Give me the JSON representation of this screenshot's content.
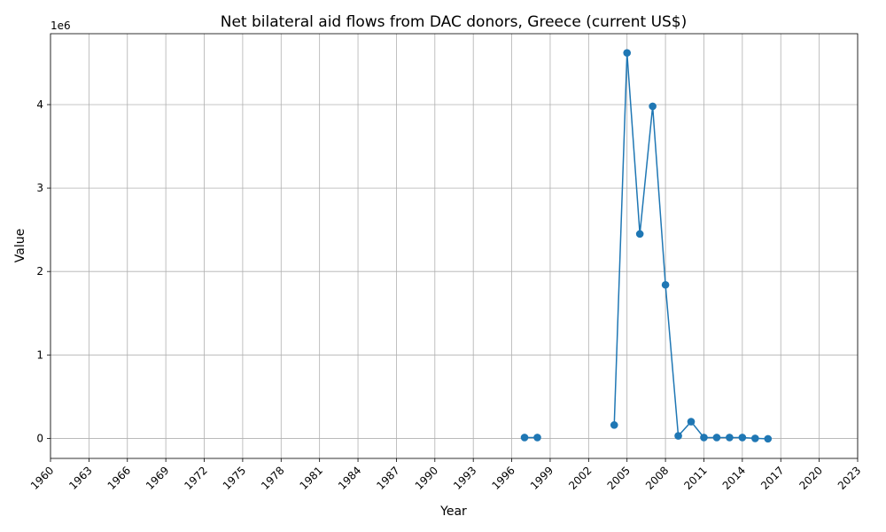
{
  "chart_data": {
    "type": "line",
    "title": "Net bilateral aid flows from DAC donors, Greece (current US$)",
    "xlabel": "Year",
    "ylabel": "Value",
    "y_scale_label": "1e6",
    "xlim": [
      1960,
      2023
    ],
    "ylim": [
      -240000,
      4850000
    ],
    "x_ticks": [
      "1960",
      "1963",
      "1966",
      "1969",
      "1972",
      "1975",
      "1978",
      "1981",
      "1984",
      "1987",
      "1990",
      "1993",
      "1996",
      "1999",
      "2002",
      "2005",
      "2008",
      "2011",
      "2014",
      "2017",
      "2020",
      "2023"
    ],
    "y_ticks": [
      "0",
      "1",
      "2",
      "3",
      "4"
    ],
    "grid": true,
    "series": [
      {
        "color": "#1f77b4",
        "points": [
          {
            "x": 1997,
            "y": 10000
          },
          {
            "x": 1998,
            "y": 10000
          },
          {
            "x": 1999,
            "y": null
          },
          {
            "x": 2004,
            "y": 160000
          },
          {
            "x": 2005,
            "y": 4620000
          },
          {
            "x": 2006,
            "y": 2450000
          },
          {
            "x": 2007,
            "y": 3980000
          },
          {
            "x": 2008,
            "y": 1840000
          },
          {
            "x": 2009,
            "y": 30000
          },
          {
            "x": 2010,
            "y": 200000
          },
          {
            "x": 2011,
            "y": 10000
          },
          {
            "x": 2012,
            "y": 10000
          },
          {
            "x": 2013,
            "y": 10000
          },
          {
            "x": 2014,
            "y": 10000
          },
          {
            "x": 2015,
            "y": 0
          },
          {
            "x": 2016,
            "y": -5000
          }
        ]
      }
    ]
  }
}
